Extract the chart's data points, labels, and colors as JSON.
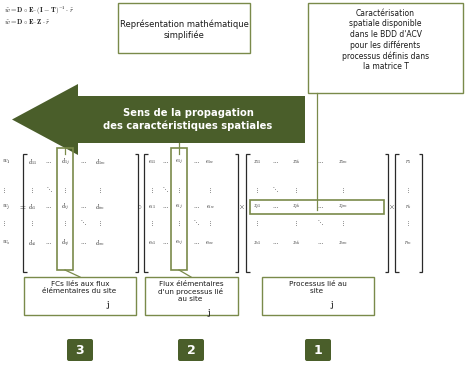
{
  "bg_color": "#ffffff",
  "dark_green": "#4a5e2a",
  "light_green_border": "#7a8a4a",
  "text_color": "#1a1a1a",
  "formula_line1": "$\\tilde{w} = \\mathbf{D} \\circ \\mathbf{E} \\cdot (\\mathbf{I} - \\mathbf{T})^{-1} \\cdot \\tilde{r}$",
  "formula_line2": "$\\tilde{w} = \\mathbf{D} \\circ \\mathbf{E} \\cdot \\mathbf{Z} \\cdot \\tilde{r}$",
  "box1_text": "Représentation mathématique\nsimplifiée",
  "box2_text": "Caractérisation\nspatiale disponible\ndans le BDD d'ACV\npour les différents\nprocessus définis dans\nla matrice T",
  "arrow_text": "Sens de la propagation\ndes caractéristiques spatiales",
  "label1_text": "FCs liés aux flux\nélémentaires du site ",
  "label2_text": "Flux élémentaires\nd'un processus lié\nau site ",
  "label3_text": "Processus lié au\nsite ",
  "num1": "3",
  "num2": "2",
  "num3": "1"
}
